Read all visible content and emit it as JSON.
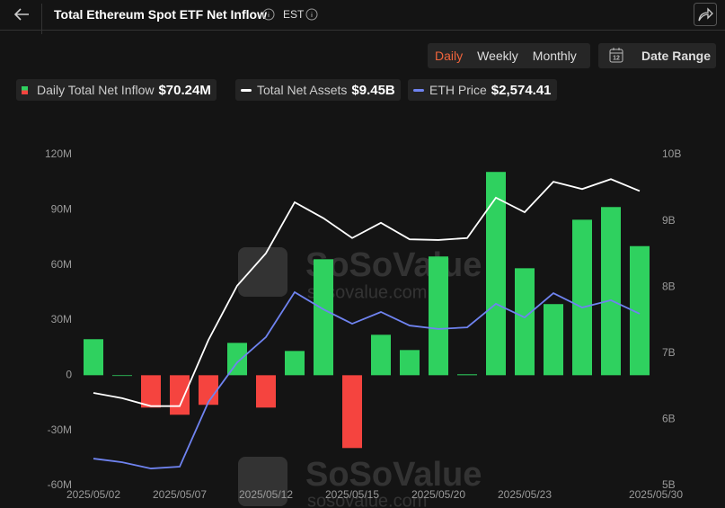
{
  "header": {
    "title": "Total Ethereum Spot ETF Net Inflow",
    "timezone": "EST"
  },
  "controls": {
    "periods": [
      "Daily",
      "Weekly",
      "Monthly"
    ],
    "active_period": "Daily",
    "date_range": "Date Range"
  },
  "watermark": {
    "brand": "SoSoValue",
    "site": "sosovalue.com"
  },
  "chart_data": {
    "type": "bar",
    "categories": [
      "2025/05/02",
      null,
      null,
      "2025/05/07",
      null,
      null,
      "2025/05/12",
      null,
      null,
      "2025/05/15",
      null,
      null,
      "2025/05/20",
      null,
      null,
      "2025/05/23",
      null,
      null,
      null,
      "2025/05/30"
    ],
    "series": [
      {
        "name": "Daily Total Net Inflow",
        "summary": "$70.24M",
        "type": "bar",
        "color": "#2fd15f",
        "negative_color": "#f5443f",
        "values": [
          19.6,
          0,
          -17.6,
          -21.5,
          -16.1,
          17.6,
          -17.6,
          13.2,
          63.1,
          -39.6,
          22.0,
          13.7,
          64.6,
          0.5,
          110.6,
          58.2,
          38.7,
          84.6,
          91.5,
          70.24
        ]
      },
      {
        "name": "Total Net Assets",
        "summary": "$9.45B",
        "type": "line",
        "axis": "y2",
        "color": "#ffffff",
        "values": [
          6.4,
          6.32,
          6.2,
          6.2,
          7.2,
          8.02,
          8.51,
          9.28,
          9.04,
          8.74,
          8.97,
          8.72,
          8.71,
          8.74,
          9.35,
          9.13,
          9.59,
          9.48,
          9.63,
          9.45
        ]
      },
      {
        "name": "ETH Price",
        "summary": "$2,574.41",
        "type": "line",
        "axis": "y3",
        "color": "#6f83f0",
        "values": [
          1859,
          1841,
          1810,
          1819,
          2139,
          2334,
          2459,
          2681,
          2596,
          2525,
          2583,
          2516,
          2499,
          2507,
          2623,
          2556,
          2676,
          2605,
          2641,
          2574.41
        ]
      }
    ],
    "ylim": [
      -60,
      120
    ],
    "yticks": [
      {
        "value": -60,
        "label": "-60M"
      },
      {
        "value": -30,
        "label": "-30M"
      },
      0,
      {
        "value": 30,
        "label": "30M"
      },
      {
        "value": 60,
        "label": "60M"
      },
      {
        "value": 90,
        "label": "90M"
      },
      {
        "value": 120,
        "label": "120M"
      }
    ],
    "y2lim": [
      5,
      10
    ],
    "y2ticks": [
      {
        "value": 5,
        "label": "5B"
      },
      {
        "value": 6,
        "label": "6B"
      },
      {
        "value": 7,
        "label": "7B"
      },
      {
        "value": 8,
        "label": "8B"
      },
      {
        "value": 9,
        "label": "9B"
      },
      {
        "value": 10,
        "label": "10B"
      }
    ],
    "y3lim": [
      1726,
      3360
    ],
    "grid": false
  }
}
